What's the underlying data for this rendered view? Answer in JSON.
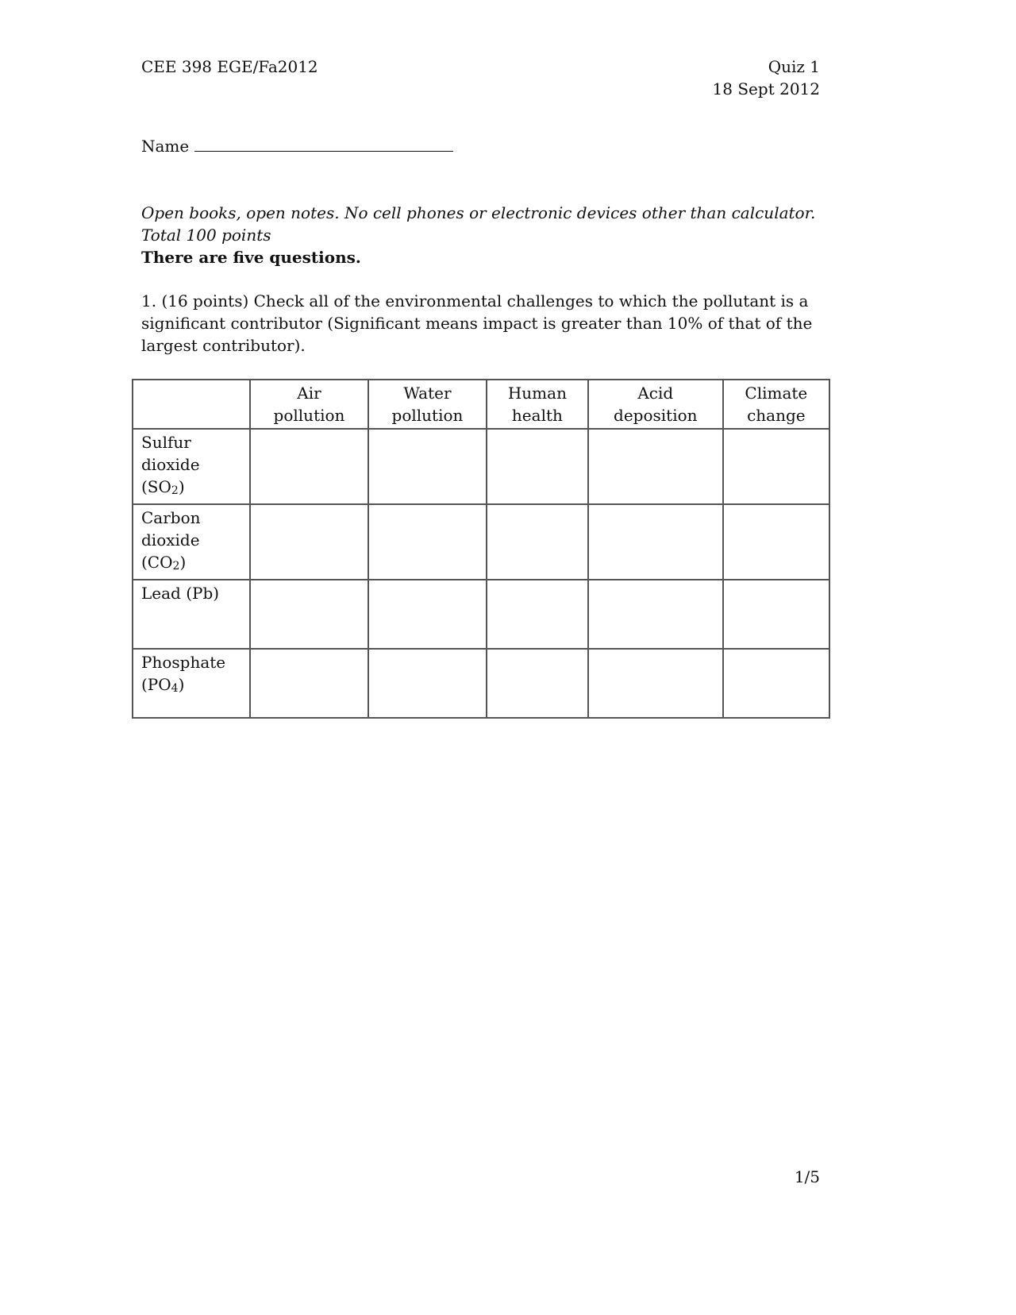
{
  "header": {
    "course": "CEE 398  EGE/Fa2012",
    "quiz": "Quiz 1",
    "date": "18 Sept 2012"
  },
  "name_label": "Name",
  "instructions": {
    "line1": "Open books, open notes. No cell phones or electronic devices other than calculator.",
    "line2": "Total 100 points",
    "line3": "There are five questions."
  },
  "question1": {
    "line1": "1. (16 points) Check all of the environmental challenges to which the pollutant is a",
    "line2": "significant contributor (Significant means impact is greater than 10% of that of the",
    "line3": "largest contributor).",
    "columns": [
      {
        "l1": "Air",
        "l2": "pollution"
      },
      {
        "l1": "Water",
        "l2": "pollution"
      },
      {
        "l1": "Human",
        "l2": "health"
      },
      {
        "l1": "Acid",
        "l2": "deposition"
      },
      {
        "l1": "Climate",
        "l2": "change"
      }
    ],
    "rows": [
      {
        "l1": "Sulfur",
        "l2": "dioxide",
        "formula": "(SO",
        "sub": "2",
        "close": ")"
      },
      {
        "l1": "Carbon",
        "l2": "dioxide",
        "formula": "(CO",
        "sub": "2",
        "close": ")"
      },
      {
        "l1": "Lead (Pb)",
        "l2": "",
        "formula": "",
        "sub": "",
        "close": ""
      },
      {
        "l1": "Phosphate",
        "l2": "",
        "formula": "(PO",
        "sub": "4",
        "close": ")"
      }
    ]
  },
  "footer": {
    "page": "1/5"
  }
}
